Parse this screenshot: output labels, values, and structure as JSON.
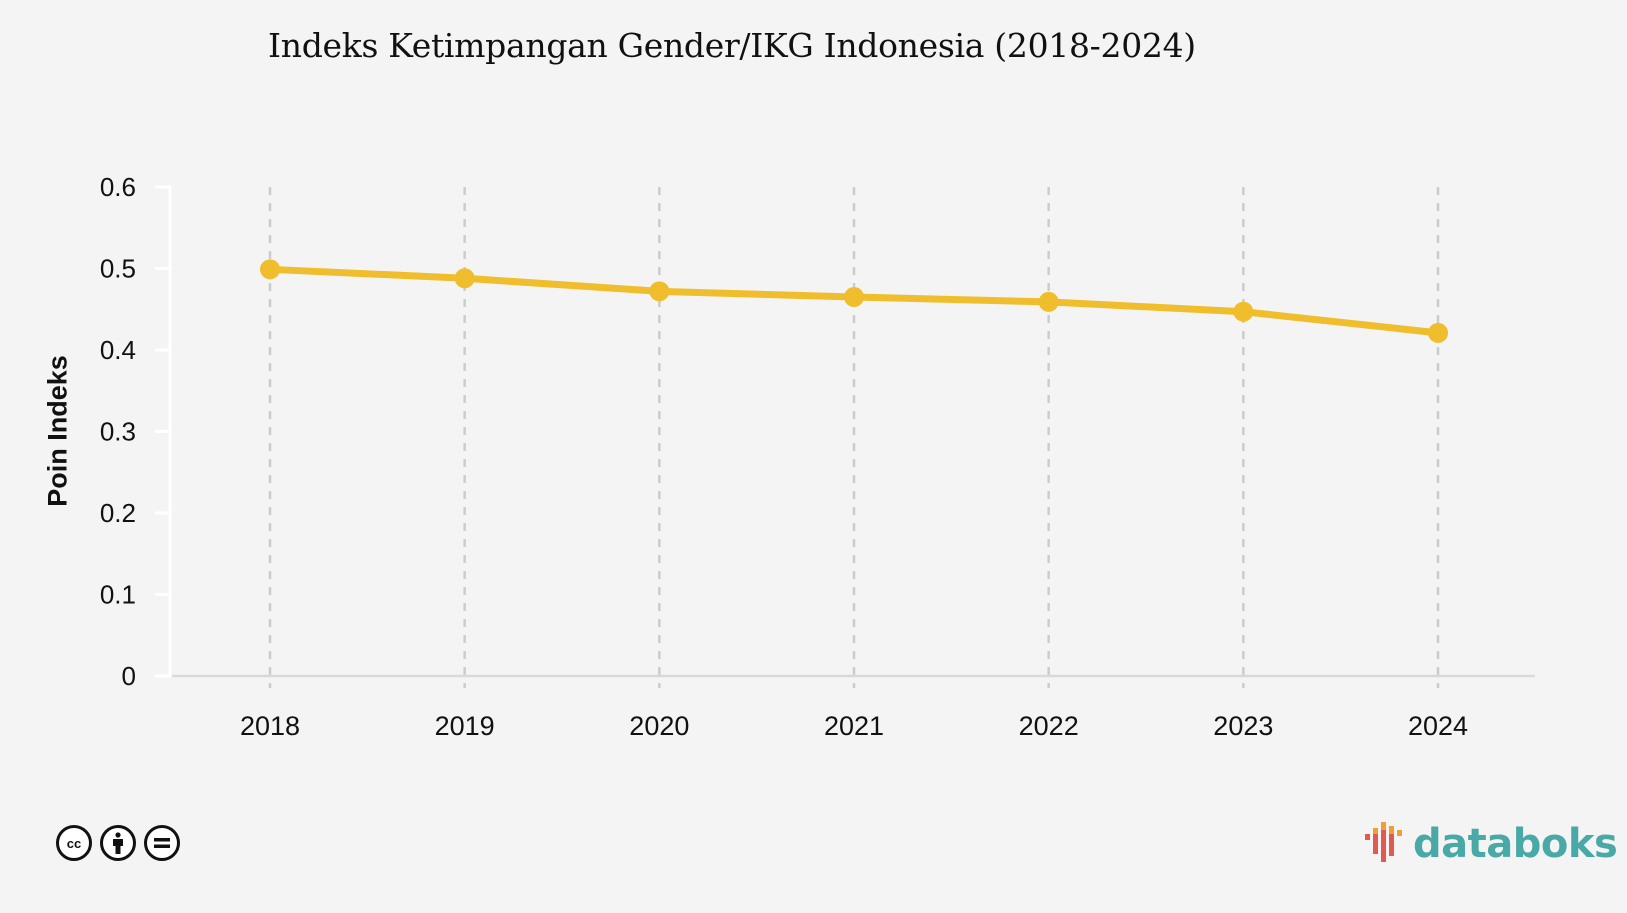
{
  "chart_data": {
    "type": "line",
    "title": "Indeks Ketimpangan Gender/IKG Indonesia (2018-2024)",
    "xlabel": "",
    "ylabel": "Poin Indeks",
    "categories": [
      "2018",
      "2019",
      "2020",
      "2021",
      "2022",
      "2023",
      "2024"
    ],
    "series": [
      {
        "name": "IKG",
        "values": [
          0.499,
          0.488,
          0.472,
          0.465,
          0.459,
          0.447,
          0.421
        ],
        "color": "#f0be2c"
      }
    ],
    "ylim": [
      0,
      0.6
    ],
    "yticks": [
      "0",
      "0.1",
      "0.2",
      "0.3",
      "0.4",
      "0.5",
      "0.6"
    ],
    "grid": "vertical dashed",
    "legend": "none"
  },
  "header": {
    "title": "Indeks Ketimpangan Gender/IKG Indonesia (2018-2024)"
  },
  "axes": {
    "ylabel": "Poin Indeks"
  },
  "footer": {
    "license_icons": [
      "cc-icon",
      "by-icon",
      "nd-icon"
    ],
    "cc_text": "cc",
    "brand": "databoks"
  },
  "colors": {
    "line": "#f0be2c",
    "background": "#f4f4f4",
    "grid": "#cccccc",
    "brand_text": "#49a9a6",
    "brand_red": "#e05a4f",
    "brand_orange": "#f0a030"
  }
}
